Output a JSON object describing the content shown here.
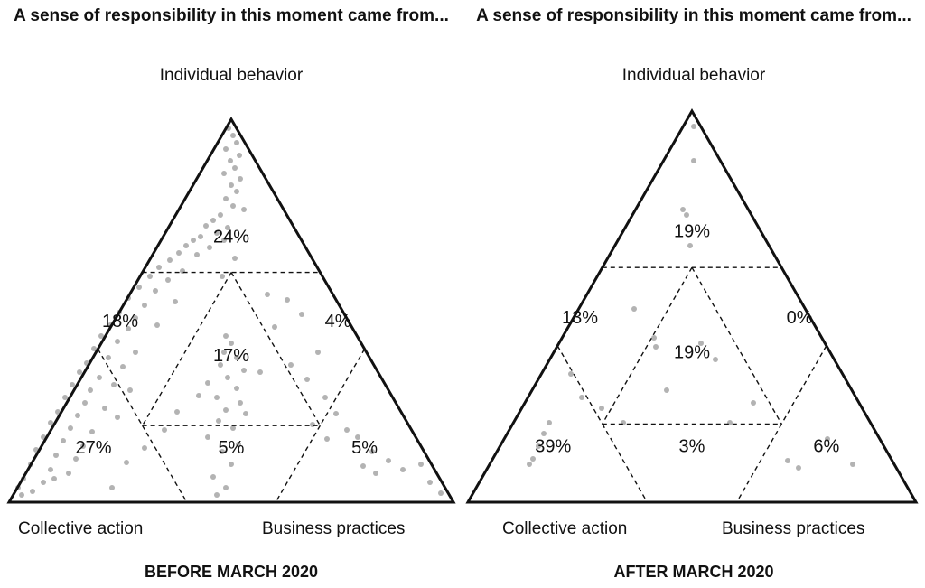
{
  "chart_data": [
    {
      "type": "scatter",
      "chart_subtype": "ternary",
      "title": "A sense of responsibility in this moment came from...",
      "caption": "BEFORE MARCH 2020",
      "vertices": {
        "top": "Individual behavior",
        "left": "Collective action",
        "right": "Business practices"
      },
      "region_percentages": {
        "individual": "24%",
        "individual_collective": "18%",
        "individual_business": "4%",
        "center": "17%",
        "collective": "27%",
        "collective_business": "5%",
        "business": "5%"
      },
      "colors": {
        "points": "#9a9a9a",
        "frame": "#111111"
      }
    },
    {
      "type": "scatter",
      "chart_subtype": "ternary",
      "title": "A sense of responsibility in this moment came from...",
      "caption": "AFTER MARCH 2020",
      "vertices": {
        "top": "Individual behavior",
        "left": "Collective action",
        "right": "Business practices"
      },
      "region_percentages": {
        "individual": "19%",
        "individual_collective": "13%",
        "individual_business": "0%",
        "center": "19%",
        "collective": "39%",
        "collective_business": "3%",
        "business": "6%"
      },
      "colors": {
        "points": "#9a9a9a",
        "frame": "#111111"
      }
    }
  ]
}
